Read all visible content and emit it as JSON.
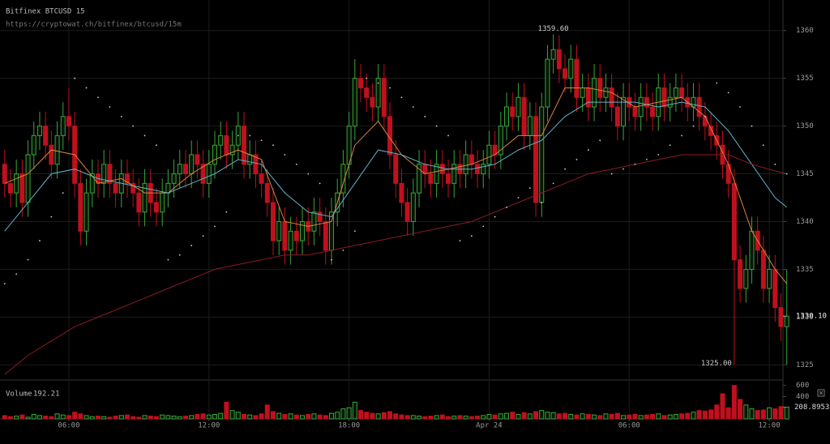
{
  "chart_data": {
    "type": "candlestick",
    "title": "Bitfinex BTCUSD 15",
    "subtitle": "https://cryptowat.ch/bitfinex/btcusd/15m",
    "up_color": "#3aa63a",
    "down_color": "#c0101e",
    "grid": true,
    "xlim": [
      -0.8,
      134.6
    ],
    "ylim": [
      1323.5,
      1363.2
    ],
    "yticks": [
      1325,
      1330,
      1335,
      1340,
      1345,
      1350,
      1355,
      1360
    ],
    "xticks": [
      {
        "value": 11,
        "label": "06:00"
      },
      {
        "value": 35,
        "label": "12:00"
      },
      {
        "value": 59,
        "label": "18:00"
      },
      {
        "value": 83,
        "label": "Apr 24"
      },
      {
        "value": 107,
        "label": "06:00"
      },
      {
        "value": 131,
        "label": "12:00"
      }
    ],
    "open": [
      1346,
      1344,
      1343,
      1345,
      1342,
      1347,
      1349,
      1350,
      1348,
      1346,
      1349,
      1351,
      1350,
      1344,
      1339,
      1343,
      1345,
      1344,
      1346,
      1344,
      1343,
      1345,
      1344,
      1343,
      1341,
      1344,
      1342,
      1341,
      1343,
      1344,
      1345,
      1346,
      1345,
      1347,
      1346,
      1344,
      1346,
      1348,
      1349,
      1347,
      1348,
      1350,
      1346,
      1347,
      1345,
      1344,
      1342,
      1338,
      1340,
      1337,
      1339,
      1338,
      1340,
      1339,
      1341,
      1340,
      1337,
      1341,
      1343,
      1346,
      1350,
      1355,
      1354,
      1353,
      1352,
      1355,
      1351,
      1347,
      1344,
      1342,
      1340,
      1343,
      1346,
      1345,
      1344,
      1346,
      1345,
      1344,
      1346,
      1345,
      1347,
      1346,
      1345,
      1346,
      1348,
      1347,
      1350,
      1352,
      1351,
      1353,
      1349,
      1351,
      1342,
      1352,
      1357,
      1358,
      1356,
      1355,
      1357,
      1353,
      1354,
      1352,
      1355,
      1353,
      1354,
      1352,
      1350,
      1353,
      1352,
      1351,
      1353,
      1352,
      1351,
      1354,
      1352,
      1353,
      1354,
      1353,
      1352,
      1353,
      1351,
      1350,
      1349,
      1348,
      1346,
      1344,
      1336,
      1333,
      1335,
      1339,
      1337,
      1333,
      1335,
      1331,
      1329
    ],
    "high": [
      1347.5,
      1345.5,
      1346.5,
      1346.5,
      1348.5,
      1350.5,
      1351.5,
      1351.5,
      1349.5,
      1350.5,
      1352.5,
      1354,
      1351.5,
      1345.5,
      1344.5,
      1346.5,
      1346.5,
      1347.5,
      1347.5,
      1345.5,
      1346.5,
      1346.5,
      1345.5,
      1344.5,
      1345.5,
      1345.5,
      1343.5,
      1344.5,
      1345.5,
      1346.5,
      1347.5,
      1347.5,
      1348.5,
      1348.5,
      1347.5,
      1347.5,
      1349.5,
      1350.5,
      1350.5,
      1349.5,
      1351.5,
      1351.5,
      1348.5,
      1348.5,
      1346.5,
      1345.5,
      1343.5,
      1341.5,
      1341.5,
      1340.5,
      1340.5,
      1341.5,
      1341.5,
      1342.5,
      1342.5,
      1341.5,
      1342.5,
      1344.5,
      1347.5,
      1351.5,
      1357,
      1356.5,
      1355.5,
      1354.5,
      1356.5,
      1356.5,
      1352.5,
      1348.5,
      1345.5,
      1343.5,
      1344.5,
      1347.5,
      1347.5,
      1346.5,
      1347.5,
      1347.5,
      1346.5,
      1347.5,
      1347.5,
      1348.5,
      1348.5,
      1347.5,
      1347.5,
      1349.5,
      1349.5,
      1351.5,
      1353.5,
      1353.5,
      1354.5,
      1354.5,
      1352.5,
      1352.5,
      1353.5,
      1358.5,
      1359.6,
      1359.5,
      1357.5,
      1358.5,
      1358.5,
      1355.5,
      1355.5,
      1356.5,
      1356.5,
      1355.5,
      1355.5,
      1353.5,
      1354.5,
      1354.5,
      1353.5,
      1354.5,
      1354.5,
      1353.5,
      1355.5,
      1355.5,
      1354.5,
      1355.5,
      1355.5,
      1354.5,
      1354.5,
      1354.5,
      1352.5,
      1351.5,
      1350.5,
      1349.5,
      1347.5,
      1345.5,
      1337.5,
      1336.5,
      1340.5,
      1340.5,
      1338.5,
      1336.5,
      1336.5,
      1332.5,
      1335
    ],
    "low": [
      1342.5,
      1341.5,
      1341.5,
      1340.5,
      1340.5,
      1345.5,
      1347.5,
      1346.5,
      1344.5,
      1344.5,
      1347.5,
      1348.5,
      1342.5,
      1337.5,
      1337.5,
      1341.5,
      1342.5,
      1342.5,
      1342.5,
      1341.5,
      1341.5,
      1342.5,
      1341.5,
      1339.5,
      1339.5,
      1340.5,
      1339.5,
      1339.5,
      1341.5,
      1342.5,
      1343.5,
      1343.5,
      1343.5,
      1344.5,
      1342.5,
      1342.5,
      1344.5,
      1346.5,
      1345.5,
      1345.5,
      1346.5,
      1344.5,
      1344.5,
      1343.5,
      1342.5,
      1340.5,
      1336.5,
      1336.5,
      1335.5,
      1335.5,
      1336.5,
      1336.5,
      1337.5,
      1337.5,
      1338.5,
      1335.5,
      1335.5,
      1339.5,
      1341.5,
      1344.5,
      1348.5,
      1352.5,
      1351.5,
      1350.5,
      1350.5,
      1349.5,
      1345.5,
      1342.5,
      1340.5,
      1338.5,
      1338.5,
      1341.5,
      1343.5,
      1342.5,
      1342.5,
      1343.5,
      1342.5,
      1342.5,
      1343.5,
      1343.5,
      1344.5,
      1343.5,
      1343.5,
      1344.5,
      1345.5,
      1345.5,
      1348.5,
      1349.5,
      1349.5,
      1347.5,
      1347.5,
      1340.5,
      1340.5,
      1350.5,
      1355.5,
      1354.5,
      1353.5,
      1353.5,
      1351.5,
      1351.5,
      1350.5,
      1350.5,
      1351.5,
      1351.5,
      1350.5,
      1348.5,
      1348.5,
      1350.5,
      1349.5,
      1349.5,
      1350.5,
      1349.5,
      1349.5,
      1350.5,
      1350.5,
      1351.5,
      1351.5,
      1350.5,
      1350.5,
      1349.5,
      1348.5,
      1347.5,
      1346.5,
      1344.5,
      1342.5,
      1325,
      1331.5,
      1331.5,
      1333.5,
      1335.5,
      1331.5,
      1331.5,
      1329.5,
      1327.5,
      1325
    ],
    "close": [
      1344,
      1343,
      1345,
      1342,
      1347,
      1349,
      1350,
      1348,
      1346,
      1349,
      1351,
      1350,
      1344,
      1339,
      1343,
      1345,
      1344,
      1346,
      1344,
      1343,
      1345,
      1344,
      1343,
      1341,
      1344,
      1342,
      1341,
      1343,
      1344,
      1345,
      1346,
      1345,
      1347,
      1346,
      1344,
      1346,
      1348,
      1349,
      1347,
      1348,
      1350,
      1346,
      1347,
      1345,
      1344,
      1342,
      1338,
      1340,
      1337,
      1339,
      1338,
      1340,
      1339,
      1341,
      1340,
      1337,
      1341,
      1343,
      1346,
      1350,
      1355,
      1354,
      1353,
      1352,
      1355,
      1351,
      1347,
      1344,
      1342,
      1340,
      1343,
      1346,
      1345,
      1344,
      1346,
      1345,
      1344,
      1346,
      1345,
      1347,
      1346,
      1345,
      1346,
      1348,
      1347,
      1350,
      1352,
      1351,
      1353,
      1349,
      1351,
      1342,
      1352,
      1357,
      1358,
      1356,
      1355,
      1357,
      1353,
      1354,
      1352,
      1355,
      1353,
      1354,
      1352,
      1350,
      1353,
      1352,
      1351,
      1353,
      1352,
      1351,
      1354,
      1352,
      1353,
      1354,
      1353,
      1352,
      1353,
      1351,
      1350,
      1349,
      1348,
      1346,
      1344,
      1336,
      1333,
      1335,
      1339,
      1337,
      1333,
      1335,
      1331,
      1329,
      1330.1
    ],
    "lines": [
      {
        "color": "#d9843b",
        "x": [
          0,
          4,
          8,
          12,
          16,
          20,
          24,
          28,
          32,
          36,
          40,
          44,
          48,
          52,
          56,
          60,
          64,
          68,
          72,
          76,
          80,
          84,
          88,
          92,
          96,
          100,
          104,
          108,
          112,
          116,
          120,
          124,
          128,
          132,
          134
        ],
        "values": [
          1344,
          1345,
          1347.5,
          1347,
          1344,
          1344.5,
          1343,
          1343,
          1345,
          1346.5,
          1347.5,
          1346.5,
          1340,
          1339.5,
          1340,
          1348,
          1350.5,
          1347,
          1345,
          1345.5,
          1346,
          1347,
          1349,
          1349,
          1354,
          1354,
          1353.5,
          1352,
          1352.5,
          1353,
          1351,
          1346,
          1339,
          1335,
          1333.5
        ]
      },
      {
        "color": "#5fb3c7",
        "x": [
          0,
          4,
          8,
          12,
          16,
          20,
          24,
          28,
          32,
          36,
          40,
          44,
          48,
          52,
          56,
          60,
          64,
          68,
          72,
          76,
          80,
          84,
          88,
          92,
          96,
          100,
          104,
          108,
          112,
          116,
          120,
          124,
          128,
          132,
          134
        ],
        "values": [
          1339,
          1342,
          1345,
          1345.5,
          1344.5,
          1344,
          1343.5,
          1343,
          1344,
          1345,
          1346.5,
          1346,
          1343,
          1341,
          1340.5,
          1344,
          1347.5,
          1347,
          1346,
          1345.5,
          1345.5,
          1346,
          1347.5,
          1348.5,
          1351,
          1352.5,
          1352.5,
          1352.5,
          1352,
          1352.5,
          1352,
          1349.5,
          1346,
          1342.5,
          1341.5
        ]
      },
      {
        "color": "#8a1c22",
        "x": [
          0,
          4,
          8,
          12,
          16,
          20,
          24,
          28,
          32,
          36,
          40,
          44,
          48,
          52,
          56,
          60,
          64,
          68,
          72,
          76,
          80,
          84,
          88,
          92,
          96,
          100,
          104,
          108,
          112,
          116,
          120,
          124,
          128,
          132,
          134
        ],
        "values": [
          1324,
          1326,
          1327.5,
          1329,
          1330,
          1331,
          1332,
          1333,
          1334,
          1335,
          1335.5,
          1336,
          1336.5,
          1336.5,
          1337,
          1337.5,
          1338,
          1338.5,
          1339,
          1339.5,
          1340,
          1341,
          1342,
          1343,
          1344,
          1345,
          1345.5,
          1346,
          1346.5,
          1347,
          1347,
          1347,
          1346,
          1345.3,
          1345
        ]
      }
    ],
    "sar": {
      "color": "#cfcfcf",
      "x": [
        0,
        2,
        4,
        6,
        8,
        10,
        12,
        14,
        16,
        18,
        20,
        22,
        24,
        26,
        28,
        30,
        32,
        34,
        36,
        38,
        40,
        42,
        44,
        46,
        48,
        50,
        52,
        54,
        56,
        58,
        60,
        62,
        64,
        66,
        68,
        70,
        72,
        74,
        76,
        78,
        80,
        82,
        84,
        86,
        88,
        90,
        92,
        94,
        96,
        98,
        100,
        102,
        104,
        106,
        108,
        110,
        112,
        114,
        116,
        118,
        120,
        122,
        124,
        126,
        128,
        130,
        132,
        134
      ],
      "values": [
        1333.5,
        1334.5,
        1336,
        1338,
        1340.5,
        1343,
        1355,
        1354,
        1353,
        1352,
        1351,
        1350,
        1349,
        1348,
        1336,
        1336.5,
        1337.5,
        1338.5,
        1339.5,
        1341,
        1349,
        1349,
        1348.5,
        1348,
        1347,
        1346,
        1345,
        1344,
        1336,
        1337,
        1339,
        1355,
        1354.5,
        1354,
        1353,
        1352,
        1351,
        1350,
        1349,
        1338,
        1338.5,
        1339.5,
        1340.5,
        1341.5,
        1342.5,
        1343.5,
        1342,
        1344,
        1345.5,
        1346.5,
        1347.5,
        1348.5,
        1345,
        1345.5,
        1346,
        1346.5,
        1347,
        1348,
        1349,
        1350,
        1351,
        1354.5,
        1353.5,
        1352,
        1350,
        1348,
        1346,
        1345
      ]
    },
    "annotations": [
      {
        "value": 1359.6,
        "label": "1359.60",
        "at": "high"
      },
      {
        "value": 1325,
        "label": "1325.00",
        "at": "low"
      }
    ],
    "last_price": {
      "value": 1330.1,
      "label": "1330.10"
    },
    "volume_panel": {
      "label": "Volume",
      "current": "192.21",
      "ylim": [
        0,
        683
      ],
      "yticks": [
        400,
        600
      ],
      "last_value": {
        "value": 208.89535,
        "label": "208.89535"
      },
      "values": [
        60,
        40,
        50,
        70,
        30,
        80,
        60,
        50,
        40,
        90,
        70,
        60,
        120,
        90,
        60,
        40,
        50,
        40,
        30,
        50,
        60,
        70,
        40,
        30,
        60,
        50,
        40,
        70,
        60,
        50,
        40,
        50,
        60,
        80,
        90,
        70,
        80,
        100,
        300,
        150,
        120,
        80,
        70,
        60,
        90,
        250,
        130,
        100,
        80,
        90,
        70,
        60,
        80,
        90,
        70,
        60,
        100,
        120,
        180,
        200,
        300,
        150,
        120,
        100,
        90,
        110,
        130,
        90,
        70,
        60,
        60,
        50,
        40,
        50,
        60,
        70,
        40,
        50,
        60,
        50,
        40,
        50,
        60,
        80,
        70,
        90,
        100,
        120,
        80,
        110,
        90,
        130,
        150,
        120,
        110,
        90,
        100,
        80,
        70,
        90,
        80,
        70,
        60,
        90,
        80,
        100,
        60,
        70,
        80,
        60,
        70,
        80,
        90,
        60,
        70,
        80,
        90,
        100,
        120,
        150,
        140,
        160,
        250,
        450,
        200,
        600,
        350,
        250,
        180,
        150,
        160,
        200,
        180,
        220,
        210
      ]
    }
  }
}
